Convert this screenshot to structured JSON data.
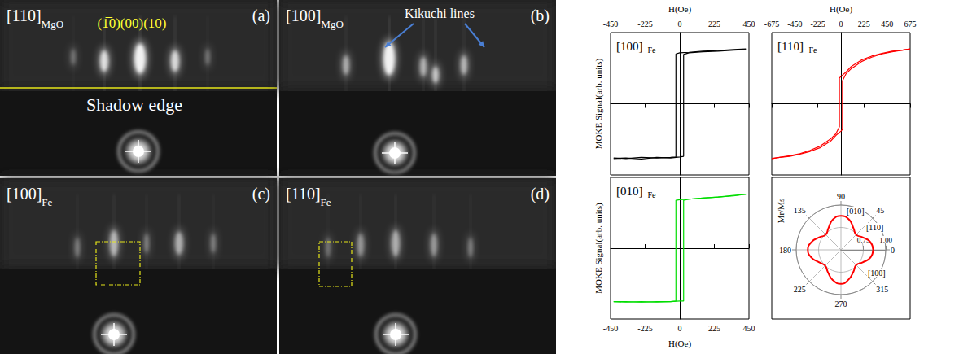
{
  "images": [
    {
      "letter": "(a)",
      "label": "[110]",
      "label_subscript": "MgO",
      "index_labels": "(1̅0)(00)(10)",
      "line_label": "Shadow edge"
    },
    {
      "letter": "(b)",
      "label": "[100]",
      "label_subscript": "MgO",
      "arrow_label": "Kikuchi lines"
    },
    {
      "letter": "(c)",
      "label": "[100]",
      "label_subscript": "Fe"
    },
    {
      "letter": "(d)",
      "label": "[110]",
      "label_subscript": "Fe"
    }
  ],
  "chart_data": [
    {
      "type": "line",
      "label": "[100]",
      "label_subscript": "Fe",
      "x_label": "H(Oe)",
      "y_label": "MOKE Signal(arb. units)",
      "xlim": [
        -450,
        450
      ],
      "xticks": [
        -450,
        -225,
        0,
        225,
        450
      ],
      "ylim": [
        -1.3,
        1.3
      ],
      "yticks": [],
      "tick_labels": "x",
      "color": "#000000",
      "series": [
        {
          "x": [
            -430,
            -350,
            -250,
            -150,
            -60,
            0,
            25,
            25,
            60,
            150,
            250,
            350,
            430
          ],
          "values": [
            -1.0,
            -0.99,
            -1.01,
            -0.98,
            -0.99,
            -0.97,
            -0.96,
            0.9,
            0.93,
            0.95,
            0.96,
            0.98,
            0.99
          ]
        },
        {
          "x": [
            430,
            350,
            250,
            150,
            60,
            0,
            -25,
            -25,
            -60,
            -150,
            -250,
            -350,
            -430
          ],
          "values": [
            1.0,
            0.99,
            0.97,
            0.96,
            0.94,
            0.93,
            0.91,
            -0.97,
            -0.98,
            -0.99,
            -0.98,
            -1.0,
            -0.99
          ]
        }
      ]
    },
    {
      "type": "line",
      "label": "[110]",
      "label_subscript": "Fe",
      "x_label": "H(Oe)",
      "xlim": [
        -675,
        675
      ],
      "xticks": [
        -675,
        -450,
        -225,
        0,
        225,
        450,
        675
      ],
      "ylim": [
        -1.3,
        1.3
      ],
      "yticks": [],
      "tick_labels": "x",
      "color": "#ff0000",
      "series": [
        {
          "x": [
            -675,
            -600,
            -500,
            -400,
            -300,
            -200,
            -100,
            -50,
            0,
            15,
            15,
            50,
            100,
            200,
            300,
            400,
            500,
            600,
            675
          ],
          "values": [
            -1.0,
            -0.98,
            -0.96,
            -0.92,
            -0.87,
            -0.8,
            -0.68,
            -0.58,
            -0.5,
            -0.47,
            0.42,
            0.55,
            0.64,
            0.77,
            0.85,
            0.91,
            0.95,
            0.98,
            1.0
          ]
        },
        {
          "x": [
            675,
            600,
            500,
            400,
            300,
            200,
            100,
            50,
            0,
            -15,
            -15,
            -50,
            -100,
            -200,
            -300,
            -400,
            -500,
            -600,
            -675
          ],
          "values": [
            1.0,
            0.98,
            0.96,
            0.92,
            0.87,
            0.8,
            0.68,
            0.58,
            0.5,
            0.47,
            -0.42,
            -0.55,
            -0.64,
            -0.77,
            -0.85,
            -0.91,
            -0.95,
            -0.98,
            -1.0
          ]
        }
      ]
    },
    {
      "type": "line",
      "label": "[010]",
      "label_subscript": "Fe",
      "x_label": "H(Oe)",
      "y_label": "MOKE Signal(arb. units)",
      "xlim": [
        -450,
        450
      ],
      "xticks": [
        -450,
        -225,
        0,
        225,
        450
      ],
      "ylim": [
        -1.3,
        1.3
      ],
      "yticks": [],
      "tick_labels": "x",
      "color": "#00dd00",
      "series": [
        {
          "x": [
            -430,
            -350,
            -250,
            -150,
            -60,
            0,
            25,
            25,
            60,
            150,
            250,
            350,
            430
          ],
          "values": [
            -0.98,
            -0.99,
            -0.98,
            -0.99,
            -0.98,
            -0.97,
            -0.97,
            0.88,
            0.9,
            0.92,
            0.94,
            0.96,
            0.99
          ]
        },
        {
          "x": [
            430,
            350,
            250,
            150,
            60,
            0,
            -25,
            -25,
            -60,
            -150,
            -250,
            -350,
            -430
          ],
          "values": [
            0.99,
            0.97,
            0.94,
            0.92,
            0.9,
            0.89,
            0.88,
            -0.97,
            -0.98,
            -0.98,
            -0.99,
            -0.98,
            -0.98
          ]
        }
      ]
    },
    {
      "type": "polar",
      "y_label": "Mr/Ms",
      "color": "#ff0000",
      "angles": [
        0,
        15,
        30,
        45,
        60,
        75,
        90,
        105,
        120,
        135,
        150,
        165,
        180,
        195,
        210,
        225,
        240,
        255,
        270,
        285,
        300,
        315,
        330,
        345,
        360
      ],
      "values": [
        0.86,
        0.84,
        0.78,
        0.74,
        0.78,
        0.85,
        0.88,
        0.85,
        0.78,
        0.74,
        0.78,
        0.84,
        0.87,
        0.84,
        0.78,
        0.75,
        0.79,
        0.85,
        0.88,
        0.84,
        0.78,
        0.74,
        0.78,
        0.84,
        0.86
      ],
      "anglelim": [
        0,
        360
      ],
      "angleticks": [
        0,
        45,
        90,
        135,
        180,
        225,
        270,
        315
      ],
      "rlim": [
        0.5,
        1
      ],
      "rticks": [
        0.75,
        {
          "value": 1,
          "label": "1.00"
        }
      ],
      "annotations": [
        "[010]",
        "[110]",
        "[100]"
      ]
    }
  ]
}
